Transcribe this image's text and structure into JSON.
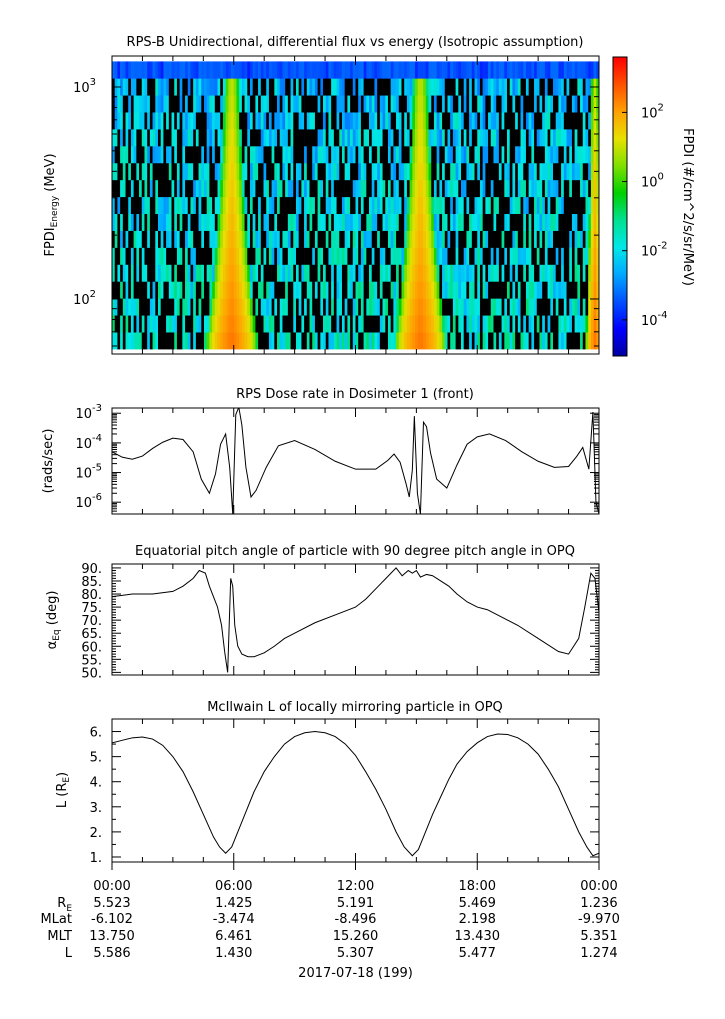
{
  "colors": {
    "colorbar": [
      "#0000a0",
      "#0000ff",
      "#0050ff",
      "#00a8ff",
      "#00e8e8",
      "#00e090",
      "#00d000",
      "#80e000",
      "#e8e000",
      "#ffa000",
      "#ff5000",
      "#ff0000"
    ],
    "background_cell": "#000000"
  },
  "chart_data": [
    {
      "type": "heatmap",
      "title": "RPS-B  Unidirectional, differential flux vs energy (Isotropic assumption)",
      "ylabel": "FPDI",
      "ylabel_sub": "Energy",
      "ylabel_unit": " (MeV)",
      "ylog": true,
      "ylim": [
        55,
        1400
      ],
      "y_ticks": [
        {
          "base": "10",
          "exp": "2",
          "value": 100
        },
        {
          "base": "10",
          "exp": "3",
          "value": 1000
        }
      ],
      "energy_bins_count": 17,
      "x_range_hours": [
        0,
        24
      ],
      "colorbar": {
        "label": "FPDI (#/cm^2/s/sr/MeV)",
        "log": true,
        "range": [
          9e-06,
          4000
        ],
        "ticks": [
          {
            "base": "10",
            "exp": "2",
            "value": 100
          },
          {
            "base": "10",
            "exp": "0",
            "value": 1
          },
          {
            "base": "10",
            "exp": "-2",
            "value": 0.01
          },
          {
            "base": "10",
            "exp": "-4",
            "value": 0.0001
          }
        ]
      },
      "belt_passes_hours": [
        {
          "center": 5.9,
          "peak_flux": 300,
          "narrow": false
        },
        {
          "center": 15.2,
          "peak_flux": 300,
          "narrow": false
        },
        {
          "center": 23.8,
          "peak_flux": 300,
          "narrow": true
        }
      ],
      "background_flux": 0.02
    },
    {
      "type": "line",
      "title": "RPS  Dose rate in Dosimeter 1 (front)",
      "ylabel": "(rads/sec)",
      "ylog": true,
      "ylim": [
        4e-07,
        0.0015
      ],
      "y_ticks": [
        {
          "base": "10",
          "exp": "-3",
          "value": 0.001
        },
        {
          "base": "10",
          "exp": "-4",
          "value": 0.0001
        },
        {
          "base": "10",
          "exp": "-5",
          "value": 1e-05
        },
        {
          "base": "10",
          "exp": "-6",
          "value": 1e-06
        }
      ],
      "x_hours": [
        0,
        0.5,
        1,
        1.5,
        2,
        2.5,
        3,
        3.5,
        4,
        4.4,
        4.8,
        5.1,
        5.35,
        5.6,
        5.8,
        5.95,
        6.1,
        6.25,
        6.4,
        6.6,
        6.85,
        7.1,
        7.6,
        8.2,
        9,
        10,
        11,
        12,
        13,
        13.6,
        13.9,
        14.2,
        14.5,
        14.65,
        14.8,
        14.9,
        15.05,
        15.2,
        15.35,
        15.5,
        15.7,
        16,
        16.5,
        17,
        17.5,
        18,
        18.6,
        19.4,
        20.2,
        21,
        21.8,
        22.5,
        22.9,
        23.2,
        23.5,
        23.7,
        23.85,
        24
      ],
      "values": [
        5e-05,
        3.3e-05,
        2.8e-05,
        3.6e-05,
        6.5e-05,
        0.000105,
        0.000145,
        0.00013,
        5e-05,
        6e-06,
        2e-06,
        9e-06,
        9e-05,
        0.0002,
        1.5e-05,
        4e-07,
        0.0009,
        0.0016,
        0.0004,
        1.5e-05,
        1.5e-06,
        2.5e-06,
        1.5e-05,
        8e-05,
        0.00012,
        6e-05,
        2.4e-05,
        1.3e-05,
        1.3e-05,
        2.6e-05,
        4.2e-05,
        2.2e-05,
        4e-06,
        1.5e-06,
        1.2e-05,
        0.0008,
        2e-06,
        4e-07,
        0.0005,
        0.00035,
        4.5e-05,
        6e-06,
        3e-06,
        1.8e-05,
        9e-05,
        0.00016,
        0.0002,
        0.00012,
        5e-05,
        2.4e-05,
        1.5e-05,
        1.6e-05,
        3.5e-05,
        7e-05,
        1.3e-05,
        0.0011,
        1e-06,
        4e-07
      ]
    },
    {
      "type": "line",
      "title": "Equatorial pitch angle of particle with 90 degree pitch angle in OPQ",
      "ylabel": "α",
      "ylabel_sub": "Eq",
      "ylabel_unit": " (deg)",
      "ylim": [
        49,
        91.5
      ],
      "y_ticks": [
        {
          "label": "90.",
          "value": 90
        },
        {
          "label": "85.",
          "value": 85
        },
        {
          "label": "80.",
          "value": 80
        },
        {
          "label": "75.",
          "value": 75
        },
        {
          "label": "70.",
          "value": 70
        },
        {
          "label": "65.",
          "value": 65
        },
        {
          "label": "60.",
          "value": 60
        },
        {
          "label": "55.",
          "value": 55
        },
        {
          "label": "50.",
          "value": 50
        }
      ],
      "x_hours": [
        0,
        1,
        2,
        3,
        3.5,
        4,
        4.3,
        4.6,
        4.8,
        5,
        5.2,
        5.4,
        5.55,
        5.7,
        5.85,
        5.95,
        6.05,
        6.2,
        6.4,
        6.7,
        7,
        7.5,
        8,
        8.5,
        9,
        10,
        11,
        12,
        12.5,
        13,
        13.5,
        14,
        14.3,
        14.6,
        14.8,
        15,
        15.2,
        15.5,
        15.8,
        16.2,
        16.6,
        17,
        17.5,
        18,
        18.5,
        19,
        19.5,
        20,
        21,
        22,
        22.5,
        23,
        23.3,
        23.6,
        23.8,
        24
      ],
      "values": [
        79,
        80,
        80,
        81,
        83,
        86,
        89,
        88,
        83,
        79,
        75,
        68,
        58,
        50,
        86,
        83,
        68,
        60,
        57,
        56,
        56,
        57.5,
        60,
        63,
        65,
        69,
        72,
        75,
        78,
        82,
        86,
        90,
        87,
        89,
        88,
        89,
        86.5,
        87.5,
        87,
        85,
        83,
        80,
        77,
        75,
        74,
        72,
        70,
        68,
        63,
        58,
        57,
        63,
        75,
        88,
        86,
        73
      ]
    },
    {
      "type": "line",
      "title": "McIlwain L of locally mirroring particle in OPQ",
      "ylabel": "L (R",
      "ylabel_sub": "E",
      "ylabel_unit": ")",
      "ylim": [
        0.8,
        6.5
      ],
      "y_ticks": [
        {
          "label": "6.",
          "value": 6
        },
        {
          "label": "5.",
          "value": 5
        },
        {
          "label": "4.",
          "value": 4
        },
        {
          "label": "3.",
          "value": 3
        },
        {
          "label": "2.",
          "value": 2
        },
        {
          "label": "1.",
          "value": 1
        }
      ],
      "x_hours": [
        0,
        0.5,
        1,
        1.5,
        2,
        2.5,
        3,
        3.5,
        4,
        4.5,
        5,
        5.3,
        5.6,
        5.9,
        6.2,
        6.6,
        7,
        7.5,
        8,
        8.5,
        9,
        9.5,
        10,
        10.5,
        11,
        11.5,
        12,
        12.5,
        13,
        13.5,
        14,
        14.4,
        14.8,
        15.1,
        15.4,
        15.8,
        16.2,
        16.6,
        17,
        17.5,
        18,
        18.5,
        19,
        19.5,
        20,
        20.5,
        21,
        21.5,
        22,
        22.5,
        23,
        23.4,
        23.7,
        24
      ],
      "values": [
        5.55,
        5.65,
        5.75,
        5.78,
        5.7,
        5.45,
        5.0,
        4.4,
        3.6,
        2.7,
        1.8,
        1.4,
        1.15,
        1.4,
        2.0,
        2.8,
        3.6,
        4.4,
        5.0,
        5.5,
        5.8,
        5.95,
        6.0,
        5.95,
        5.8,
        5.5,
        5.05,
        4.4,
        3.7,
        2.9,
        2.0,
        1.4,
        1.05,
        1.3,
        1.9,
        2.7,
        3.4,
        4.1,
        4.7,
        5.2,
        5.55,
        5.8,
        5.9,
        5.88,
        5.75,
        5.5,
        5.1,
        4.5,
        3.8,
        2.9,
        2.0,
        1.4,
        1.05,
        1.15
      ]
    }
  ],
  "x_axis": {
    "tick_labels": [
      "00:00",
      "06:00",
      "12:00",
      "18:00",
      "00:00"
    ],
    "minor_ticks_per_major": 3,
    "date_label": "2017-07-18 (199)"
  },
  "ephemeris": {
    "rows": [
      {
        "label": "R",
        "label_sub": "E",
        "values": [
          "5.523",
          "1.425",
          "5.191",
          "5.469",
          "1.236"
        ]
      },
      {
        "label": "MLat",
        "label_sub": "",
        "values": [
          "-6.102",
          "-3.474",
          "-8.496",
          "2.198",
          "-9.970"
        ]
      },
      {
        "label": "MLT",
        "label_sub": "",
        "values": [
          "13.750",
          "6.461",
          "15.260",
          "13.430",
          "5.351"
        ]
      },
      {
        "label": "L",
        "label_sub": "",
        "values": [
          "5.586",
          "1.430",
          "5.307",
          "5.477",
          "1.274"
        ]
      }
    ]
  }
}
